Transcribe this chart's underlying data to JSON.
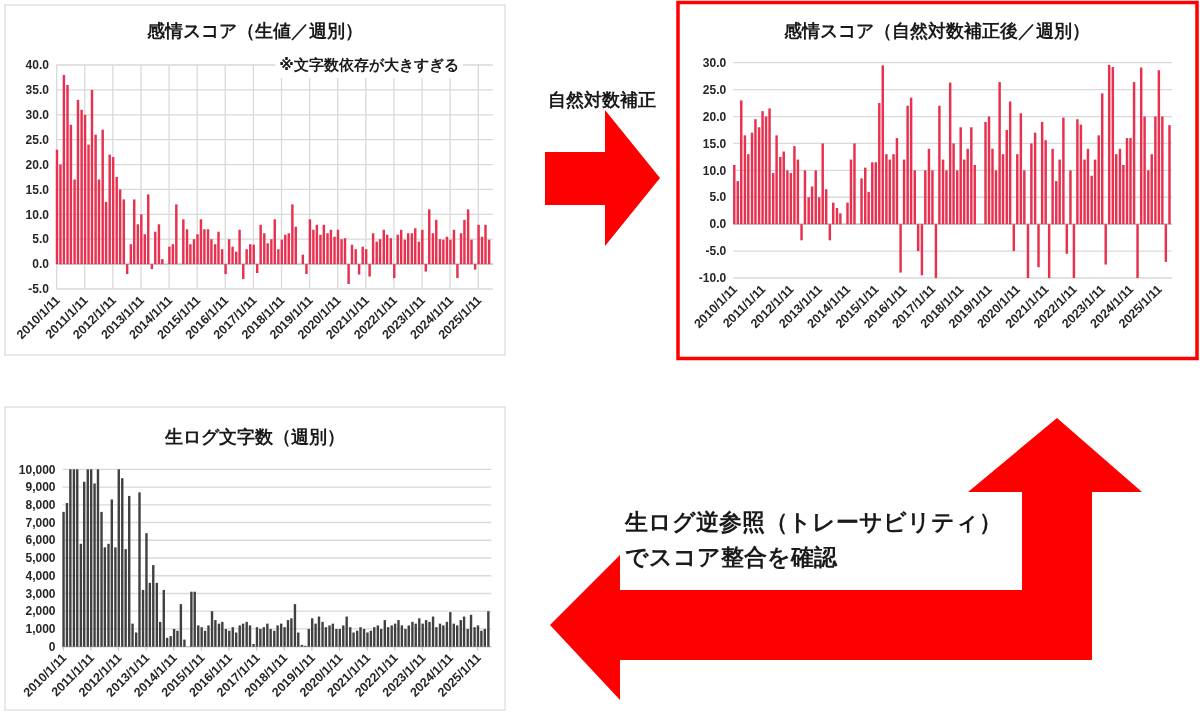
{
  "chart_data": [
    {
      "type": "bar",
      "title": "感情スコア（生値／週別）",
      "annotations": [
        "※文字数依存が大きすぎる"
      ],
      "x": [
        "2010-01-15",
        "2010-03-01",
        "2010-04-15",
        "2010-06-01",
        "2010-07-15",
        "2010-09-01",
        "2010-10-15",
        "2010-12-01",
        "2011-01-15",
        "2011-03-01",
        "2011-04-15",
        "2011-06-01",
        "2011-07-15",
        "2011-09-01",
        "2011-10-15",
        "2011-12-01",
        "2012-01-15",
        "2012-03-01",
        "2012-04-15",
        "2012-06-01",
        "2012-07-15",
        "2012-09-01",
        "2012-10-15",
        "2012-12-01",
        "2013-01-15",
        "2013-03-01",
        "2013-04-15",
        "2013-06-01",
        "2013-07-15",
        "2013-09-01",
        "2013-10-15",
        "2013-12-01",
        "2014-01-15",
        "2014-03-01",
        "2014-04-15",
        "2014-06-01",
        "2014-07-15",
        "2014-09-01",
        "2014-10-15",
        "2014-12-01",
        "2015-01-15",
        "2015-03-01",
        "2015-04-15",
        "2015-06-01",
        "2015-07-15",
        "2015-09-01",
        "2015-10-15",
        "2015-12-01",
        "2016-01-15",
        "2016-03-01",
        "2016-04-15",
        "2016-06-01",
        "2016-07-15",
        "2016-09-01",
        "2016-10-15",
        "2016-12-01",
        "2017-01-15",
        "2017-03-01",
        "2017-04-15",
        "2017-06-01",
        "2017-07-15",
        "2017-09-01",
        "2017-10-15",
        "2017-12-01",
        "2018-01-15",
        "2018-03-01",
        "2018-04-15",
        "2018-06-01",
        "2018-07-15",
        "2018-09-01",
        "2018-10-15",
        "2018-12-01",
        "2019-01-15",
        "2019-03-01",
        "2019-04-15",
        "2019-06-01",
        "2019-07-15",
        "2019-09-01",
        "2019-10-15",
        "2019-12-01",
        "2020-01-15",
        "2020-03-01",
        "2020-04-15",
        "2020-06-01",
        "2020-07-15",
        "2020-09-01",
        "2020-10-15",
        "2020-12-01",
        "2021-01-15",
        "2021-03-01",
        "2021-04-15",
        "2021-06-01",
        "2021-07-15",
        "2021-09-01",
        "2021-10-15",
        "2021-12-01",
        "2022-01-15",
        "2022-03-01",
        "2022-04-15",
        "2022-06-01",
        "2022-07-15",
        "2022-09-01",
        "2022-10-15",
        "2022-12-01",
        "2023-01-15",
        "2023-03-01",
        "2023-04-15",
        "2023-06-01",
        "2023-07-15",
        "2023-09-01",
        "2023-10-15",
        "2023-12-01",
        "2024-01-15",
        "2024-03-01",
        "2024-04-15",
        "2024-06-01",
        "2024-07-15",
        "2024-09-01",
        "2024-10-15",
        "2024-12-01",
        "2025-01-15",
        "2025-03-01",
        "2025-04-15",
        "2025-06-01"
      ],
      "values": [
        23,
        20,
        38,
        36,
        28,
        17,
        33,
        31,
        30,
        24,
        35,
        26,
        17,
        27,
        12.5,
        22,
        21.5,
        17.5,
        15,
        13,
        -2,
        4,
        13,
        8,
        10,
        6,
        14,
        -1,
        6.5,
        8,
        1,
        null,
        3.5,
        4,
        12,
        null,
        9,
        7,
        4,
        5,
        6,
        9,
        7,
        7,
        5,
        4,
        6.5,
        3,
        -2,
        5,
        3.5,
        2.5,
        6.9,
        -3,
        3,
        4,
        3.9,
        -1.8,
        7.9,
        6.2,
        4.2,
        5,
        9,
        3,
        4.9,
        5.9,
        6.2,
        12,
        7.5,
        null,
        1.9,
        -2,
        9,
        6.9,
        7.9,
        5.9,
        7.9,
        6.2,
        6.9,
        5.5,
        6.9,
        5,
        5.2,
        -4,
        3.9,
        3,
        -2.1,
        3.5,
        3,
        -2.5,
        6.2,
        4.5,
        5,
        6.9,
        5.9,
        5.2,
        -2.8,
        5.9,
        6.9,
        4.9,
        6.2,
        6.2,
        7.2,
        4.5,
        6.9,
        -1.5,
        11,
        6.2,
        8.9,
        5,
        4.9,
        5.5,
        4.9,
        6.9,
        -2.8,
        6.2,
        8.9,
        11,
        4.9,
        -1.1,
        7.9,
        5.5,
        7.9,
        4.9
      ],
      "color": "#e8304f",
      "xlim": [
        "2010-01-01",
        "2025-07-20"
      ],
      "xticks": [
        {
          "value": "2010-01-11",
          "label": "2010/1/11"
        },
        {
          "value": "2011-01-11",
          "label": "2011/1/11"
        },
        {
          "value": "2012-01-11",
          "label": "2012/1/11"
        },
        {
          "value": "2013-01-11",
          "label": "2013/1/11"
        },
        {
          "value": "2014-01-11",
          "label": "2014/1/11"
        },
        {
          "value": "2015-01-11",
          "label": "2015/1/11"
        },
        {
          "value": "2016-01-11",
          "label": "2016/1/11"
        },
        {
          "value": "2017-01-11",
          "label": "2017/1/11"
        },
        {
          "value": "2018-01-11",
          "label": "2018/1/11"
        },
        {
          "value": "2019-01-11",
          "label": "2019/1/11"
        },
        {
          "value": "2020-01-11",
          "label": "2020/1/11"
        },
        {
          "value": "2021-01-11",
          "label": "2021/1/11"
        },
        {
          "value": "2022-01-11",
          "label": "2022/1/11"
        },
        {
          "value": "2023-01-11",
          "label": "2023/1/11"
        },
        {
          "value": "2024-01-11",
          "label": "2024/1/11"
        },
        {
          "value": "2025-01-11",
          "label": "2025/1/11"
        }
      ],
      "ylim": [
        -5,
        40
      ],
      "yticks": [
        {
          "value": -5,
          "label": "-5.0"
        },
        {
          "value": 0,
          "label": "0.0"
        },
        {
          "value": 5,
          "label": "5.0"
        },
        {
          "value": 10,
          "label": "10.0"
        },
        {
          "value": 15,
          "label": "15.0"
        },
        {
          "value": 20,
          "label": "20.0"
        },
        {
          "value": 25,
          "label": "25.0"
        },
        {
          "value": 30,
          "label": "30.0"
        },
        {
          "value": 35,
          "label": "35.0"
        },
        {
          "value": 40,
          "label": "40.0"
        }
      ],
      "grid": true
    },
    {
      "type": "bar",
      "title": "感情スコア（自然対数補正後／週別）",
      "x": [
        "2010-01-15",
        "2010-03-01",
        "2010-04-15",
        "2010-06-01",
        "2010-07-15",
        "2010-09-01",
        "2010-10-15",
        "2010-12-01",
        "2011-01-15",
        "2011-03-01",
        "2011-04-15",
        "2011-06-01",
        "2011-07-15",
        "2011-09-01",
        "2011-10-15",
        "2011-12-01",
        "2012-01-15",
        "2012-03-01",
        "2012-04-15",
        "2012-06-01",
        "2012-07-15",
        "2012-09-01",
        "2012-10-15",
        "2012-12-01",
        "2013-01-15",
        "2013-03-01",
        "2013-04-15",
        "2013-06-01",
        "2013-07-15",
        "2013-09-01",
        "2013-10-15",
        "2013-12-01",
        "2014-01-15",
        "2014-03-01",
        "2014-04-15",
        "2014-06-01",
        "2014-07-15",
        "2014-09-01",
        "2014-10-15",
        "2014-12-01",
        "2015-01-15",
        "2015-03-01",
        "2015-04-15",
        "2015-06-01",
        "2015-07-15",
        "2015-09-01",
        "2015-10-15",
        "2015-12-01",
        "2016-01-15",
        "2016-03-01",
        "2016-04-15",
        "2016-06-01",
        "2016-07-15",
        "2016-09-01",
        "2016-10-15",
        "2016-12-01",
        "2017-01-15",
        "2017-03-01",
        "2017-04-15",
        "2017-06-01",
        "2017-07-15",
        "2017-09-01",
        "2017-10-15",
        "2017-12-01",
        "2018-01-15",
        "2018-03-01",
        "2018-04-15",
        "2018-06-01",
        "2018-07-15",
        "2018-09-01",
        "2018-10-15",
        "2018-12-01",
        "2019-01-15",
        "2019-03-01",
        "2019-04-15",
        "2019-06-01",
        "2019-07-15",
        "2019-09-01",
        "2019-10-15",
        "2019-12-01",
        "2020-01-15",
        "2020-03-01",
        "2020-04-15",
        "2020-06-01",
        "2020-07-15",
        "2020-09-01",
        "2020-10-15",
        "2020-12-01",
        "2021-01-15",
        "2021-03-01",
        "2021-04-15",
        "2021-06-01",
        "2021-07-15",
        "2021-09-01",
        "2021-10-15",
        "2021-12-01",
        "2022-01-15",
        "2022-03-01",
        "2022-04-15",
        "2022-06-01",
        "2022-07-15",
        "2022-09-01",
        "2022-10-15",
        "2022-12-01",
        "2023-01-15",
        "2023-03-01",
        "2023-04-15",
        "2023-06-01",
        "2023-07-15",
        "2023-09-01",
        "2023-10-15",
        "2023-12-01",
        "2024-01-15",
        "2024-03-01",
        "2024-04-15",
        "2024-06-01",
        "2024-07-15",
        "2024-09-01",
        "2024-10-15",
        "2024-12-01",
        "2025-01-15",
        "2025-03-01",
        "2025-04-15",
        "2025-06-01"
      ],
      "values": [
        11,
        8,
        23,
        16.5,
        13,
        17,
        19.5,
        18,
        21,
        20,
        21.5,
        9.5,
        16.5,
        12.5,
        13.5,
        10,
        9.5,
        14.5,
        12,
        -3,
        10,
        5,
        7,
        10,
        5,
        15,
        6.5,
        -3,
        4,
        3,
        2,
        null,
        4,
        12,
        15,
        null,
        8.5,
        10.5,
        6,
        11.5,
        11.5,
        22.5,
        29.5,
        13,
        12,
        13,
        16,
        -9,
        12,
        22,
        23.5,
        10,
        -5,
        -9.5,
        10,
        14,
        10,
        -10,
        22,
        12,
        10,
        26.3,
        15,
        10,
        18,
        12,
        14,
        18,
        11,
        null,
        null,
        19,
        20,
        14,
        10,
        26.4,
        13,
        17.5,
        22.8,
        -5,
        13,
        20.6,
        10,
        -10,
        15,
        17,
        -8,
        19,
        15.6,
        -10,
        14,
        8,
        12,
        19.8,
        -5.5,
        10,
        -10,
        19.5,
        18.5,
        12,
        14,
        9,
        12,
        16.5,
        24.3,
        -7.5,
        29.6,
        29.2,
        13,
        14,
        11,
        16,
        16,
        26.4,
        -10,
        29.1,
        20,
        10,
        13,
        20,
        28.6,
        20,
        -7,
        18.4
      ],
      "color": "#e8304f",
      "xlim": [
        "2010-01-01",
        "2025-07-01"
      ],
      "xticks": [
        {
          "value": "2010-01-11",
          "label": "2010/1/11"
        },
        {
          "value": "2011-01-11",
          "label": "2011/1/11"
        },
        {
          "value": "2012-01-11",
          "label": "2012/1/11"
        },
        {
          "value": "2013-01-11",
          "label": "2013/1/11"
        },
        {
          "value": "2014-01-11",
          "label": "2014/1/11"
        },
        {
          "value": "2015-01-11",
          "label": "2015/1/11"
        },
        {
          "value": "2016-01-11",
          "label": "2016/1/11"
        },
        {
          "value": "2017-01-11",
          "label": "2017/1/11"
        },
        {
          "value": "2018-01-11",
          "label": "2018/1/11"
        },
        {
          "value": "2019-01-11",
          "label": "2019/1/11"
        },
        {
          "value": "2020-01-11",
          "label": "2020/1/11"
        },
        {
          "value": "2021-01-11",
          "label": "2021/1/11"
        },
        {
          "value": "2022-01-11",
          "label": "2022/1/11"
        },
        {
          "value": "2023-01-11",
          "label": "2023/1/11"
        },
        {
          "value": "2024-01-11",
          "label": "2024/1/11"
        },
        {
          "value": "2025-01-11",
          "label": "2025/1/11"
        }
      ],
      "ylim": [
        -10,
        30
      ],
      "yticks": [
        {
          "value": -10,
          "label": "-10.0"
        },
        {
          "value": -5,
          "label": "-5.0"
        },
        {
          "value": 0,
          "label": "0.0"
        },
        {
          "value": 5,
          "label": "5.0"
        },
        {
          "value": 10,
          "label": "10.0"
        },
        {
          "value": 15,
          "label": "15.0"
        },
        {
          "value": 20,
          "label": "20.0"
        },
        {
          "value": 25,
          "label": "25.0"
        },
        {
          "value": 30,
          "label": "30.0"
        }
      ],
      "grid": "y"
    },
    {
      "type": "bar",
      "title": "生ログ文字数（週別）",
      "x": [
        "2010-01-15",
        "2010-03-01",
        "2010-04-15",
        "2010-06-01",
        "2010-07-15",
        "2010-09-01",
        "2010-10-15",
        "2010-12-01",
        "2011-01-15",
        "2011-03-01",
        "2011-04-15",
        "2011-06-01",
        "2011-07-15",
        "2011-09-01",
        "2011-10-15",
        "2011-12-01",
        "2012-01-15",
        "2012-03-01",
        "2012-04-15",
        "2012-06-01",
        "2012-07-15",
        "2012-09-01",
        "2012-10-15",
        "2012-12-01",
        "2013-01-15",
        "2013-03-01",
        "2013-04-15",
        "2013-06-01",
        "2013-07-15",
        "2013-09-01",
        "2013-10-15",
        "2013-12-01",
        "2014-01-15",
        "2014-03-01",
        "2014-04-15",
        "2014-06-01",
        "2014-07-15",
        "2014-09-01",
        "2014-10-15",
        "2014-12-01",
        "2015-01-15",
        "2015-03-01",
        "2015-04-15",
        "2015-06-01",
        "2015-07-15",
        "2015-09-01",
        "2015-10-15",
        "2015-12-01",
        "2016-01-15",
        "2016-03-01",
        "2016-04-15",
        "2016-06-01",
        "2016-07-15",
        "2016-09-01",
        "2016-10-15",
        "2016-12-01",
        "2017-01-15",
        "2017-03-01",
        "2017-04-15",
        "2017-06-01",
        "2017-07-15",
        "2017-09-01",
        "2017-10-15",
        "2017-12-01",
        "2018-01-15",
        "2018-03-01",
        "2018-04-15",
        "2018-06-01",
        "2018-07-15",
        "2018-09-01",
        "2018-10-15",
        "2018-12-01",
        "2019-01-15",
        "2019-03-01",
        "2019-04-15",
        "2019-06-01",
        "2019-07-15",
        "2019-09-01",
        "2019-10-15",
        "2019-12-01",
        "2020-01-15",
        "2020-03-01",
        "2020-04-15",
        "2020-06-01",
        "2020-07-15",
        "2020-09-01",
        "2020-10-15",
        "2020-12-01",
        "2021-01-15",
        "2021-03-01",
        "2021-04-15",
        "2021-06-01",
        "2021-07-15",
        "2021-09-01",
        "2021-10-15",
        "2021-12-01",
        "2022-01-15",
        "2022-03-01",
        "2022-04-15",
        "2022-06-01",
        "2022-07-15",
        "2022-09-01",
        "2022-10-15",
        "2022-12-01",
        "2023-01-15",
        "2023-03-01",
        "2023-04-15",
        "2023-06-01",
        "2023-07-15",
        "2023-09-01",
        "2023-10-15",
        "2023-12-01",
        "2024-01-15",
        "2024-03-01",
        "2024-04-15",
        "2024-06-01",
        "2024-07-15",
        "2024-09-01",
        "2024-10-15",
        "2024-12-01",
        "2025-01-15",
        "2025-03-01",
        "2025-04-15",
        "2025-06-01"
      ],
      "values": [
        7600,
        8100,
        10000,
        10000,
        10000,
        5800,
        9300,
        10000,
        10000,
        9200,
        10000,
        7600,
        5600,
        5800,
        8300,
        5600,
        10000,
        9500,
        5500,
        8500,
        1300,
        800,
        8700,
        3200,
        6400,
        3600,
        4600,
        3600,
        1400,
        3200,
        500,
        600,
        1000,
        900,
        2400,
        400,
        null,
        3100,
        3100,
        1200,
        1100,
        900,
        1200,
        2000,
        1500,
        1300,
        1400,
        1000,
        900,
        1100,
        800,
        1200,
        1300,
        1400,
        1200,
        150,
        1100,
        1000,
        1100,
        1300,
        1000,
        900,
        1200,
        1300,
        1100,
        1500,
        1600,
        2400,
        800,
        100,
        50,
        1000,
        1600,
        1300,
        1700,
        1400,
        1100,
        1200,
        1300,
        1000,
        1000,
        1200,
        1700,
        1100,
        800,
        900,
        1100,
        1000,
        800,
        900,
        1100,
        1200,
        1000,
        1500,
        1100,
        1200,
        1300,
        1500,
        1200,
        1000,
        1200,
        1400,
        1300,
        1600,
        1300,
        1500,
        1400,
        1700,
        1100,
        1300,
        1200,
        1400,
        1950,
        1300,
        1200,
        1500,
        1700,
        1000,
        1800,
        1100,
        1200,
        900,
        1000,
        2000
      ],
      "color": "#404040",
      "xlim": [
        "2010-01-01",
        "2025-07-10"
      ],
      "xticks": [
        {
          "value": "2010-01-11",
          "label": "2010/1/11"
        },
        {
          "value": "2011-01-11",
          "label": "2011/1/11"
        },
        {
          "value": "2012-01-11",
          "label": "2012/1/11"
        },
        {
          "value": "2013-01-11",
          "label": "2013/1/11"
        },
        {
          "value": "2014-01-11",
          "label": "2014/1/11"
        },
        {
          "value": "2015-01-11",
          "label": "2015/1/11"
        },
        {
          "value": "2016-01-11",
          "label": "2016/1/11"
        },
        {
          "value": "2017-01-11",
          "label": "2017/1/11"
        },
        {
          "value": "2018-01-11",
          "label": "2018/1/11"
        },
        {
          "value": "2019-01-11",
          "label": "2019/1/11"
        },
        {
          "value": "2020-01-11",
          "label": "2020/1/11"
        },
        {
          "value": "2021-01-11",
          "label": "2021/1/11"
        },
        {
          "value": "2022-01-11",
          "label": "2022/1/11"
        },
        {
          "value": "2023-01-11",
          "label": "2023/1/11"
        },
        {
          "value": "2024-01-11",
          "label": "2024/1/11"
        },
        {
          "value": "2025-01-11",
          "label": "2025/1/11"
        }
      ],
      "ylim": [
        0,
        10000
      ],
      "yticks": [
        0,
        {
          "value": 1000,
          "label": "1,000"
        },
        {
          "value": 2000,
          "label": "2,000"
        },
        {
          "value": 3000,
          "label": "3,000"
        },
        {
          "value": 4000,
          "label": "4,000"
        },
        {
          "value": 5000,
          "label": "5,000"
        },
        {
          "value": 6000,
          "label": "6,000"
        },
        {
          "value": 7000,
          "label": "7,000"
        },
        {
          "value": 8000,
          "label": "8,000"
        },
        {
          "value": 9000,
          "label": "9,000"
        },
        {
          "value": 10000,
          "label": "10,000"
        }
      ],
      "grid": "y"
    },
    {
      "type": "other",
      "annotations": [
        "自然対数補正",
        "生ログ逆参照（トレーサビリティ）",
        "でスコア整合を確認"
      ]
    }
  ]
}
